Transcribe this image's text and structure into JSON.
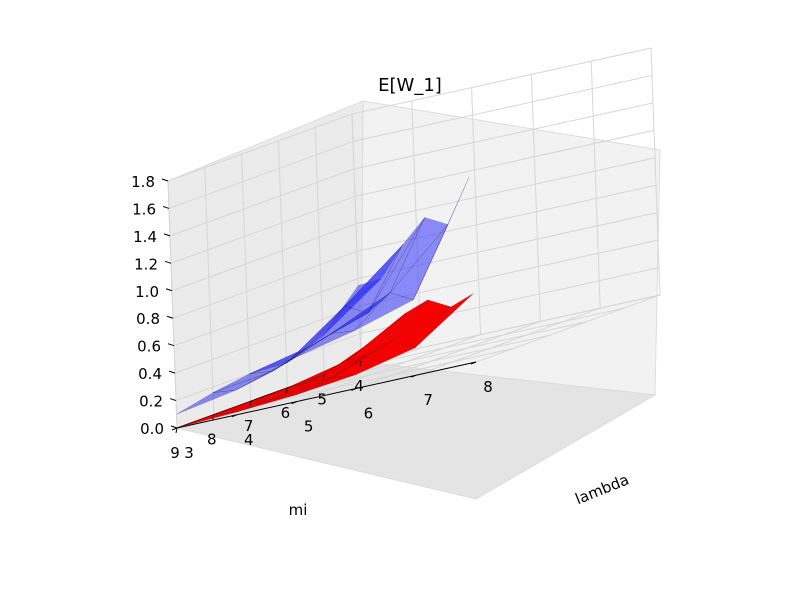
{
  "chart_data": {
    "type": "surface3d",
    "title": "E[W_1]",
    "xlabel": "lambda",
    "ylabel": "mi",
    "zlabel": "",
    "x_ticks": [
      "3",
      "4",
      "5",
      "6",
      "7",
      "8"
    ],
    "y_ticks": [
      "4",
      "5",
      "6",
      "7",
      "8",
      "9"
    ],
    "z_ticks": [
      "0.0",
      "0.2",
      "0.4",
      "0.6",
      "0.8",
      "1.0",
      "1.2",
      "1.4",
      "1.6",
      "1.8"
    ],
    "xlim": [
      3,
      8
    ],
    "ylim": [
      4,
      9
    ],
    "zlim": [
      0,
      1.8
    ],
    "grid": true,
    "series": [
      {
        "color": "#3333ff",
        "opacity": 0.55,
        "points": [
          {
            "mi": 9,
            "lambda": 3,
            "value": 0.1
          },
          {
            "mi": 8,
            "lambda": 3,
            "value": 0.16
          },
          {
            "mi": 7,
            "lambda": 3,
            "value": 0.2
          },
          {
            "mi": 6,
            "lambda": 3,
            "value": 0.18
          },
          {
            "mi": 5,
            "lambda": 3,
            "value": 0.28
          },
          {
            "mi": 4,
            "lambda": 3,
            "value": 0.55
          },
          {
            "mi": 9,
            "lambda": 4,
            "value": 0.18
          },
          {
            "mi": 8,
            "lambda": 4,
            "value": 0.22
          },
          {
            "mi": 7,
            "lambda": 4,
            "value": 0.3
          },
          {
            "mi": 6,
            "lambda": 4,
            "value": 0.5
          },
          {
            "mi": 5,
            "lambda": 4,
            "value": 0.6
          },
          {
            "mi": 9,
            "lambda": 5,
            "value": 0.32
          },
          {
            "mi": 8,
            "lambda": 5,
            "value": 0.4
          },
          {
            "mi": 7,
            "lambda": 5,
            "value": 0.45
          },
          {
            "mi": 6,
            "lambda": 5,
            "value": 0.85
          },
          {
            "mi": 9,
            "lambda": 6,
            "value": 0.42
          },
          {
            "mi": 8,
            "lambda": 6,
            "value": 0.6
          },
          {
            "mi": 7,
            "lambda": 6,
            "value": 1.05
          },
          {
            "mi": 9,
            "lambda": 7,
            "value": 0.55
          },
          {
            "mi": 8,
            "lambda": 7,
            "value": 1.0
          },
          {
            "mi": 9,
            "lambda": 8,
            "value": 1.35
          }
        ]
      },
      {
        "color": "#ff0000",
        "opacity": 1.0,
        "points": [
          {
            "mi": 9,
            "lambda": 3,
            "value": 0.0
          },
          {
            "mi": 8,
            "lambda": 3,
            "value": 0.0
          },
          {
            "mi": 7,
            "lambda": 3,
            "value": 0.0
          },
          {
            "mi": 6,
            "lambda": 3,
            "value": 0.0
          },
          {
            "mi": 5,
            "lambda": 3,
            "value": 0.0
          },
          {
            "mi": 4,
            "lambda": 3,
            "value": 0.0
          },
          {
            "mi": 9,
            "lambda": 4,
            "value": 0.02
          },
          {
            "mi": 8,
            "lambda": 4,
            "value": 0.02
          },
          {
            "mi": 7,
            "lambda": 4,
            "value": 0.05
          },
          {
            "mi": 6,
            "lambda": 4,
            "value": 0.1
          },
          {
            "mi": 5,
            "lambda": 4,
            "value": 0.2
          },
          {
            "mi": 9,
            "lambda": 5,
            "value": 0.05
          },
          {
            "mi": 8,
            "lambda": 5,
            "value": 0.08
          },
          {
            "mi": 7,
            "lambda": 5,
            "value": 0.15
          },
          {
            "mi": 6,
            "lambda": 5,
            "value": 0.35
          },
          {
            "mi": 9,
            "lambda": 6,
            "value": 0.1
          },
          {
            "mi": 8,
            "lambda": 6,
            "value": 0.25
          },
          {
            "mi": 7,
            "lambda": 6,
            "value": 0.45
          },
          {
            "mi": 9,
            "lambda": 7,
            "value": 0.2
          },
          {
            "mi": 8,
            "lambda": 7,
            "value": 0.4
          },
          {
            "mi": 9,
            "lambda": 8,
            "value": 0.5
          }
        ]
      }
    ]
  }
}
